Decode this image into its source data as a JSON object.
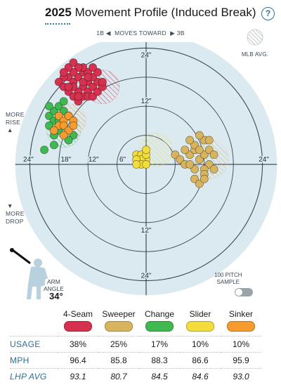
{
  "header": {
    "year": "2025",
    "title": "Movement Profile (Induced Break)",
    "help_icon": "?"
  },
  "direction": {
    "left": "1B",
    "middle": "MOVES TOWARD",
    "right": "3B"
  },
  "legend_mlb": "MLB AVG.",
  "side_labels": {
    "rise_1": "MORE",
    "rise_2": "RISE",
    "drop_1": "MORE",
    "drop_2": "DROP"
  },
  "arm_angle": {
    "label_1": "ARM",
    "label_2": "ANGLE",
    "value": "34°"
  },
  "sample_toggle": {
    "label_1": "100 PITCH",
    "label_2": "SAMPLE",
    "on": false
  },
  "table": {
    "row_labels": {
      "usage": "USAGE",
      "mph": "MPH",
      "avg": "LHP AVG"
    },
    "pitches": [
      {
        "name": "4-Seam",
        "color": "#d6324f",
        "usage": "38%",
        "mph": "96.4",
        "avg": "93.1"
      },
      {
        "name": "Sweeper",
        "color": "#d9b45e",
        "usage": "25%",
        "mph": "85.8",
        "avg": "80.7"
      },
      {
        "name": "Change",
        "color": "#3fb950",
        "usage": "17%",
        "mph": "88.3",
        "avg": "84.5"
      },
      {
        "name": "Slider",
        "color": "#f2dd3c",
        "usage": "10%",
        "mph": "86.6",
        "avg": "84.6"
      },
      {
        "name": "Sinker",
        "color": "#f59b2f",
        "usage": "10%",
        "mph": "95.9",
        "avg": "93.0"
      }
    ]
  },
  "chart_data": {
    "type": "scatter",
    "coordinate_system": "polar-inches",
    "ring_labels": [
      "6\"",
      "12\"",
      "18\"",
      "24\""
    ],
    "ring_values": [
      6,
      12,
      18,
      24
    ],
    "axis_end_labels": {
      "top": "24\"",
      "bottom": "24\"",
      "left": "24\"",
      "right": "24\""
    },
    "side_tick_labels": {
      "top": "12\"",
      "bottom": "12\"",
      "left_12": "12\"",
      "left_6": "6\""
    },
    "x_range": [
      -28,
      28
    ],
    "y_range": [
      -28,
      28
    ],
    "series": [
      {
        "name": "4-Seam",
        "color": "#d6324f",
        "mlb_avg": {
          "x": -9,
          "y": 16,
          "r": 3.5
        },
        "points": [
          [
            -16,
            18
          ],
          [
            -15,
            17
          ],
          [
            -14,
            18
          ],
          [
            -13,
            19
          ],
          [
            -12,
            17
          ],
          [
            -13,
            16
          ],
          [
            -14,
            15
          ],
          [
            -15,
            16
          ],
          [
            -16,
            15
          ],
          [
            -12,
            15
          ],
          [
            -11,
            16
          ],
          [
            -10,
            17
          ],
          [
            -11,
            18
          ],
          [
            -12,
            19
          ],
          [
            -13,
            20
          ],
          [
            -14,
            20
          ],
          [
            -15,
            19
          ],
          [
            -16,
            20
          ],
          [
            -17,
            18
          ],
          [
            -18,
            17
          ],
          [
            -17,
            16
          ],
          [
            -15,
            14
          ],
          [
            -14,
            13
          ],
          [
            -13,
            14
          ],
          [
            -12,
            14
          ],
          [
            -11,
            14
          ],
          [
            -10,
            15
          ],
          [
            -9,
            16
          ],
          [
            -9,
            17
          ],
          [
            -10,
            19
          ],
          [
            -13,
            17
          ],
          [
            -15,
            21
          ],
          [
            -12,
            18
          ],
          [
            -16,
            16
          ],
          [
            -14,
            14
          ],
          [
            -17,
            19
          ],
          [
            -11,
            20
          ]
        ]
      },
      {
        "name": "Sweeper",
        "color": "#d9b45e",
        "mlb_avg": {
          "x": 13,
          "y": 1,
          "r": 4
        },
        "points": [
          [
            6,
            2
          ],
          [
            7,
            1
          ],
          [
            8,
            0
          ],
          [
            9,
            2
          ],
          [
            10,
            3
          ],
          [
            11,
            1
          ],
          [
            12,
            2
          ],
          [
            10,
            4
          ],
          [
            9,
            5
          ],
          [
            12,
            5
          ],
          [
            11,
            6
          ],
          [
            13,
            3
          ],
          [
            14,
            2
          ],
          [
            13,
            0
          ],
          [
            12,
            -1
          ],
          [
            10,
            -1
          ],
          [
            9,
            0
          ],
          [
            11,
            3
          ],
          [
            8,
            3
          ],
          [
            13,
            5
          ],
          [
            12,
            -2
          ],
          [
            10,
            -3
          ],
          [
            11,
            -4
          ],
          [
            14,
            -1
          ],
          [
            12,
            -3
          ]
        ]
      },
      {
        "name": "Change",
        "color": "#3fb950",
        "mlb_avg": {
          "x": -17,
          "y": 7,
          "r": 3.5
        },
        "points": [
          [
            -20,
            10
          ],
          [
            -19,
            11
          ],
          [
            -18,
            12
          ],
          [
            -17,
            11
          ],
          [
            -19,
            9
          ],
          [
            -18,
            9
          ],
          [
            -20,
            8
          ],
          [
            -17,
            13
          ],
          [
            -16,
            10
          ],
          [
            -15,
            6
          ],
          [
            -16,
            5
          ],
          [
            -19,
            4
          ],
          [
            -18,
            7
          ],
          [
            -21,
            3
          ],
          [
            -20,
            12
          ],
          [
            -17,
            8
          ],
          [
            -19,
            6
          ]
        ]
      },
      {
        "name": "Slider",
        "color": "#f2dd3c",
        "mlb_avg": {
          "x": 2,
          "y": 3,
          "r": 3.5
        },
        "points": [
          [
            -2,
            2
          ],
          [
            -1,
            2
          ],
          [
            0,
            1
          ],
          [
            -1,
            1
          ],
          [
            -2,
            1
          ],
          [
            0,
            2
          ],
          [
            -1,
            0
          ],
          [
            0,
            0
          ],
          [
            -2,
            0
          ],
          [
            0,
            3
          ]
        ]
      },
      {
        "name": "Sinker",
        "color": "#f59b2f",
        "mlb_avg": {
          "x": -16,
          "y": 9,
          "r": 3.5
        },
        "points": [
          [
            -18,
            10
          ],
          [
            -17,
            9
          ],
          [
            -16,
            10
          ],
          [
            -15,
            9
          ],
          [
            -18,
            8
          ],
          [
            -17,
            8
          ],
          [
            -16,
            7
          ],
          [
            -19,
            7
          ],
          [
            -17,
            6
          ],
          [
            -15,
            8
          ]
        ]
      }
    ]
  }
}
